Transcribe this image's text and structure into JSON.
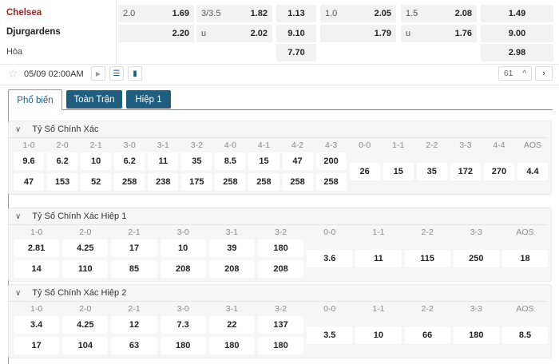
{
  "match": {
    "home": "Chelsea",
    "away": "Djurgardens",
    "draw": "Hòa",
    "datetime": "05/09 02:00AM",
    "count": "61"
  },
  "colors": {
    "home": "#b01c1c",
    "tab": "#1f5e7e"
  },
  "odds": {
    "hdp_ft": {
      "line": "2.0",
      "home": "1.69",
      "away": "2.20"
    },
    "ou_ft": {
      "line": "3/3.5",
      "over": "1.82",
      "u": "u",
      "under": "2.02"
    },
    "x12_ft": {
      "home": "1.13",
      "away": "9.10",
      "draw": "7.70"
    },
    "hdp_h1": {
      "line": "1.0",
      "home": "2.05",
      "away": "1.79"
    },
    "ou_h1": {
      "line": "1.5",
      "over": "2.08",
      "u": "u",
      "under": "1.76"
    },
    "x12_h1": {
      "home": "1.49",
      "away": "9.00",
      "draw": "2.98"
    }
  },
  "tabs": [
    "Phổ biến",
    "Toàn Trận",
    "Hiệp 1"
  ],
  "sections": [
    {
      "title": "Tỷ Số Chính Xác",
      "cols": [
        {
          "label": "1-0",
          "v": [
            "9.6",
            "47"
          ]
        },
        {
          "label": "2-0",
          "v": [
            "6.2",
            "153"
          ]
        },
        {
          "label": "2-1",
          "v": [
            "10",
            "52"
          ]
        },
        {
          "label": "3-0",
          "v": [
            "6.2",
            "258"
          ]
        },
        {
          "label": "3-1",
          "v": [
            "11",
            "238"
          ]
        },
        {
          "label": "3-2",
          "v": [
            "35",
            "175"
          ]
        },
        {
          "label": "4-0",
          "v": [
            "8.5",
            "258"
          ]
        },
        {
          "label": "4-1",
          "v": [
            "15",
            "258"
          ]
        },
        {
          "label": "4-2",
          "v": [
            "47",
            "258"
          ]
        },
        {
          "label": "4-3",
          "v": [
            "200",
            "258"
          ]
        },
        {
          "label": "0-0",
          "v": [
            "26"
          ]
        },
        {
          "label": "1-1",
          "v": [
            "15"
          ]
        },
        {
          "label": "2-2",
          "v": [
            "35"
          ]
        },
        {
          "label": "3-3",
          "v": [
            "172"
          ]
        },
        {
          "label": "4-4",
          "v": [
            "270"
          ]
        },
        {
          "label": "AOS",
          "v": [
            "4.4"
          ]
        }
      ]
    },
    {
      "title": "Tỷ Số Chính Xác Hiệp 1",
      "cols": [
        {
          "label": "1-0",
          "v": [
            "2.81",
            "14"
          ]
        },
        {
          "label": "2-0",
          "v": [
            "4.25",
            "110"
          ]
        },
        {
          "label": "2-1",
          "v": [
            "17",
            "85"
          ]
        },
        {
          "label": "3-0",
          "v": [
            "10",
            "208"
          ]
        },
        {
          "label": "3-1",
          "v": [
            "39",
            "208"
          ]
        },
        {
          "label": "3-2",
          "v": [
            "180",
            "208"
          ]
        },
        {
          "label": "0-0",
          "v": [
            "3.6"
          ]
        },
        {
          "label": "1-1",
          "v": [
            "11"
          ]
        },
        {
          "label": "2-2",
          "v": [
            "115"
          ]
        },
        {
          "label": "3-3",
          "v": [
            "250"
          ]
        },
        {
          "label": "AOS",
          "v": [
            "18"
          ]
        }
      ]
    },
    {
      "title": "Tỷ Số Chính Xác Hiệp 2",
      "cols": [
        {
          "label": "1-0",
          "v": [
            "3.4",
            "17"
          ]
        },
        {
          "label": "2-0",
          "v": [
            "4.25",
            "104"
          ]
        },
        {
          "label": "2-1",
          "v": [
            "12",
            "63"
          ]
        },
        {
          "label": "3-0",
          "v": [
            "7.3",
            "180"
          ]
        },
        {
          "label": "3-1",
          "v": [
            "22",
            "180"
          ]
        },
        {
          "label": "3-2",
          "v": [
            "137",
            "180"
          ]
        },
        {
          "label": "0-0",
          "v": [
            "3.5"
          ]
        },
        {
          "label": "1-1",
          "v": [
            "10"
          ]
        },
        {
          "label": "2-2",
          "v": [
            "66"
          ]
        },
        {
          "label": "3-3",
          "v": [
            "180"
          ]
        },
        {
          "label": "AOS",
          "v": [
            "8.5"
          ]
        }
      ]
    }
  ]
}
